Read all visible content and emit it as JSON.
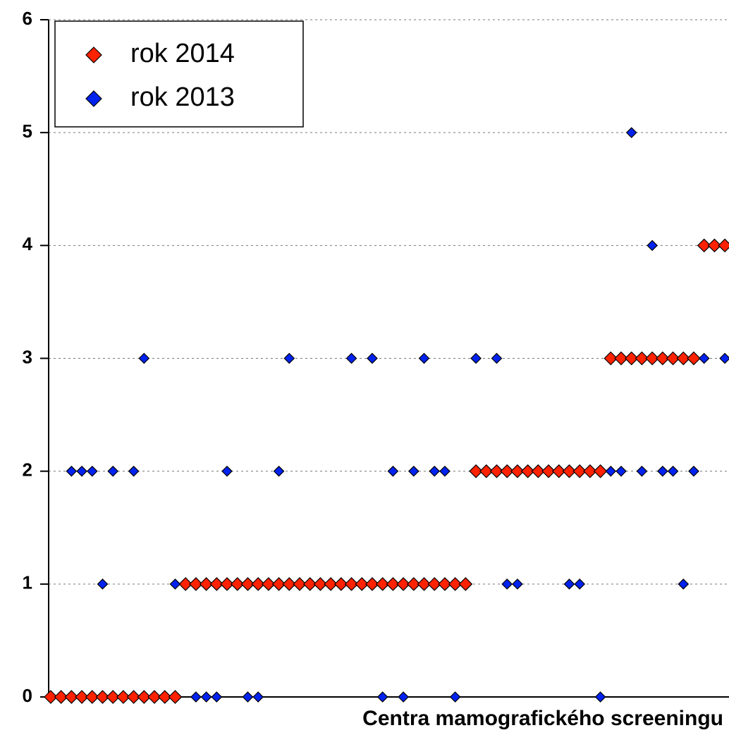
{
  "chart_data": {
    "type": "scatter",
    "x_label": "Centra mamografického screeningu",
    "xlim": [
      -0.2,
      65.4
    ],
    "ylim": [
      0,
      6
    ],
    "yticks": [
      0,
      1,
      2,
      3,
      4,
      5,
      6
    ],
    "grid": true,
    "legend": "top-left",
    "series": [
      {
        "name": "rok 2014",
        "color": "#ff2200",
        "x": [
          0,
          1,
          2,
          3,
          4,
          5,
          6,
          7,
          8,
          9,
          10,
          11,
          12,
          13,
          14,
          15,
          16,
          17,
          18,
          19,
          20,
          21,
          22,
          23,
          24,
          25,
          26,
          27,
          28,
          29,
          30,
          31,
          32,
          33,
          34,
          35,
          36,
          37,
          38,
          39,
          40,
          41,
          42,
          43,
          44,
          45,
          46,
          47,
          48,
          49,
          50,
          51,
          52,
          53,
          54,
          55,
          56,
          57,
          58,
          59,
          60,
          61,
          62,
          63,
          64,
          65
        ],
        "values": [
          0,
          0,
          0,
          0,
          0,
          0,
          0,
          0,
          0,
          0,
          0,
          0,
          0,
          1,
          1,
          1,
          1,
          1,
          1,
          1,
          1,
          1,
          1,
          1,
          1,
          1,
          1,
          1,
          1,
          1,
          1,
          1,
          1,
          1,
          1,
          1,
          1,
          1,
          1,
          1,
          1,
          2,
          2,
          2,
          2,
          2,
          2,
          2,
          2,
          2,
          2,
          2,
          2,
          2,
          3,
          3,
          3,
          3,
          3,
          3,
          3,
          3,
          3,
          4,
          4,
          4
        ]
      },
      {
        "name": "rok 2013",
        "color": "#0022ee",
        "x": [
          14,
          15,
          16,
          19,
          20,
          32,
          34,
          39,
          53,
          5,
          12,
          44,
          45,
          50,
          51,
          61,
          2,
          3,
          4,
          6,
          8,
          17,
          22,
          33,
          35,
          37,
          38,
          54,
          55,
          57,
          59,
          60,
          62,
          9,
          23,
          29,
          31,
          36,
          41,
          43,
          63,
          65,
          58,
          56
        ],
        "values": [
          0,
          0,
          0,
          0,
          0,
          0,
          0,
          0,
          0,
          1,
          1,
          1,
          1,
          1,
          1,
          1,
          2,
          2,
          2,
          2,
          2,
          2,
          2,
          2,
          2,
          2,
          2,
          2,
          2,
          2,
          2,
          2,
          2,
          3,
          3,
          3,
          3,
          3,
          3,
          3,
          3,
          3,
          4,
          5
        ]
      }
    ]
  }
}
